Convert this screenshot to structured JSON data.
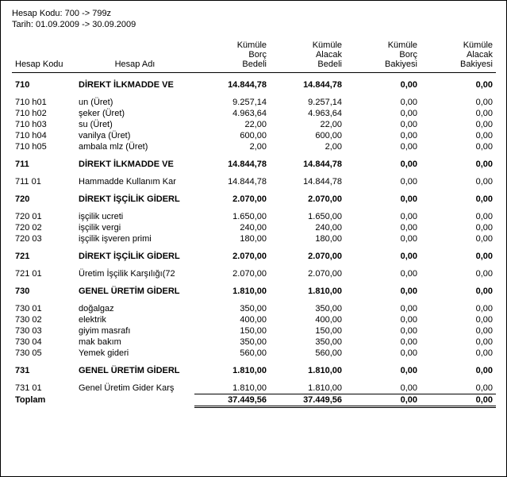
{
  "meta": {
    "line1": "Hesap Kodu: 700 -> 799z",
    "line2": "Tarih: 01.09.2009 -> 30.09.2009"
  },
  "headers": {
    "code": "Hesap Kodu",
    "name": "Hesap Adı",
    "c1a": "Kümüle",
    "c1b": "Borç",
    "c1c": "Bedeli",
    "c2a": "Kümüle",
    "c2b": "Alacak",
    "c2c": "Bedeli",
    "c3a": "Kümüle",
    "c3b": "Borç",
    "c3c": "Bakiyesi",
    "c4a": "Kümüle",
    "c4b": "Alacak",
    "c4c": "Bakiyesi"
  },
  "groups": [
    {
      "header": {
        "code": "710",
        "name": "DİREKT İLKMADDE VE",
        "v": [
          "14.844,78",
          "14.844,78",
          "0,00",
          "0,00"
        ]
      },
      "rows": [
        {
          "code": "710 h01",
          "name": "un (Üret)",
          "v": [
            "9.257,14",
            "9.257,14",
            "0,00",
            "0,00"
          ]
        },
        {
          "code": "710 h02",
          "name": "şeker (Üret)",
          "v": [
            "4.963,64",
            "4.963,64",
            "0,00",
            "0,00"
          ]
        },
        {
          "code": "710 h03",
          "name": "su (Üret)",
          "v": [
            "22,00",
            "22,00",
            "0,00",
            "0,00"
          ]
        },
        {
          "code": "710 h04",
          "name": "vanilya (Üret)",
          "v": [
            "600,00",
            "600,00",
            "0,00",
            "0,00"
          ]
        },
        {
          "code": "710 h05",
          "name": "ambala mlz (Üret)",
          "v": [
            "2,00",
            "2,00",
            "0,00",
            "0,00"
          ]
        }
      ]
    },
    {
      "header": {
        "code": "711",
        "name": "DİREKT İLKMADDE VE",
        "v": [
          "14.844,78",
          "14.844,78",
          "0,00",
          "0,00"
        ]
      },
      "rows": [
        {
          "code": "711 01",
          "name": "Hammadde Kullanım Kar",
          "v": [
            "14.844,78",
            "14.844,78",
            "0,00",
            "0,00"
          ]
        }
      ]
    },
    {
      "header": {
        "code": "720",
        "name": "DİREKT İŞÇİLİK GİDERL",
        "v": [
          "2.070,00",
          "2.070,00",
          "0,00",
          "0,00"
        ]
      },
      "rows": [
        {
          "code": "720 01",
          "name": "işçilik ucreti",
          "v": [
            "1.650,00",
            "1.650,00",
            "0,00",
            "0,00"
          ]
        },
        {
          "code": "720 02",
          "name": "işçilik vergi",
          "v": [
            "240,00",
            "240,00",
            "0,00",
            "0,00"
          ]
        },
        {
          "code": "720 03",
          "name": "işçilik işveren primi",
          "v": [
            "180,00",
            "180,00",
            "0,00",
            "0,00"
          ]
        }
      ]
    },
    {
      "header": {
        "code": "721",
        "name": "DİREKT İŞÇİLİK GİDERL",
        "v": [
          "2.070,00",
          "2.070,00",
          "0,00",
          "0,00"
        ]
      },
      "rows": [
        {
          "code": "721 01",
          "name": "Üretim İşçilik Karşılığı(72",
          "v": [
            "2.070,00",
            "2.070,00",
            "0,00",
            "0,00"
          ]
        }
      ]
    },
    {
      "header": {
        "code": "730",
        "name": "GENEL ÜRETİM GİDERL",
        "v": [
          "1.810,00",
          "1.810,00",
          "0,00",
          "0,00"
        ]
      },
      "rows": [
        {
          "code": "730 01",
          "name": "doğalgaz",
          "v": [
            "350,00",
            "350,00",
            "0,00",
            "0,00"
          ]
        },
        {
          "code": "730 02",
          "name": "elektrik",
          "v": [
            "400,00",
            "400,00",
            "0,00",
            "0,00"
          ]
        },
        {
          "code": "730 03",
          "name": "giyim masrafı",
          "v": [
            "150,00",
            "150,00",
            "0,00",
            "0,00"
          ]
        },
        {
          "code": "730 04",
          "name": "mak bakım",
          "v": [
            "350,00",
            "350,00",
            "0,00",
            "0,00"
          ]
        },
        {
          "code": "730 05",
          "name": "Yemek gideri",
          "v": [
            "560,00",
            "560,00",
            "0,00",
            "0,00"
          ]
        }
      ]
    },
    {
      "header": {
        "code": "731",
        "name": "GENEL ÜRETİM GİDERL",
        "v": [
          "1.810,00",
          "1.810,00",
          "0,00",
          "0,00"
        ]
      },
      "rows": [
        {
          "code": "731 01",
          "name": "Genel Üretim Gider Karş",
          "v": [
            "1.810,00",
            "1.810,00",
            "0,00",
            "0,00"
          ]
        }
      ]
    }
  ],
  "total": {
    "label": "Toplam",
    "v": [
      "37.449,56",
      "37.449,56",
      "0,00",
      "0,00"
    ]
  }
}
